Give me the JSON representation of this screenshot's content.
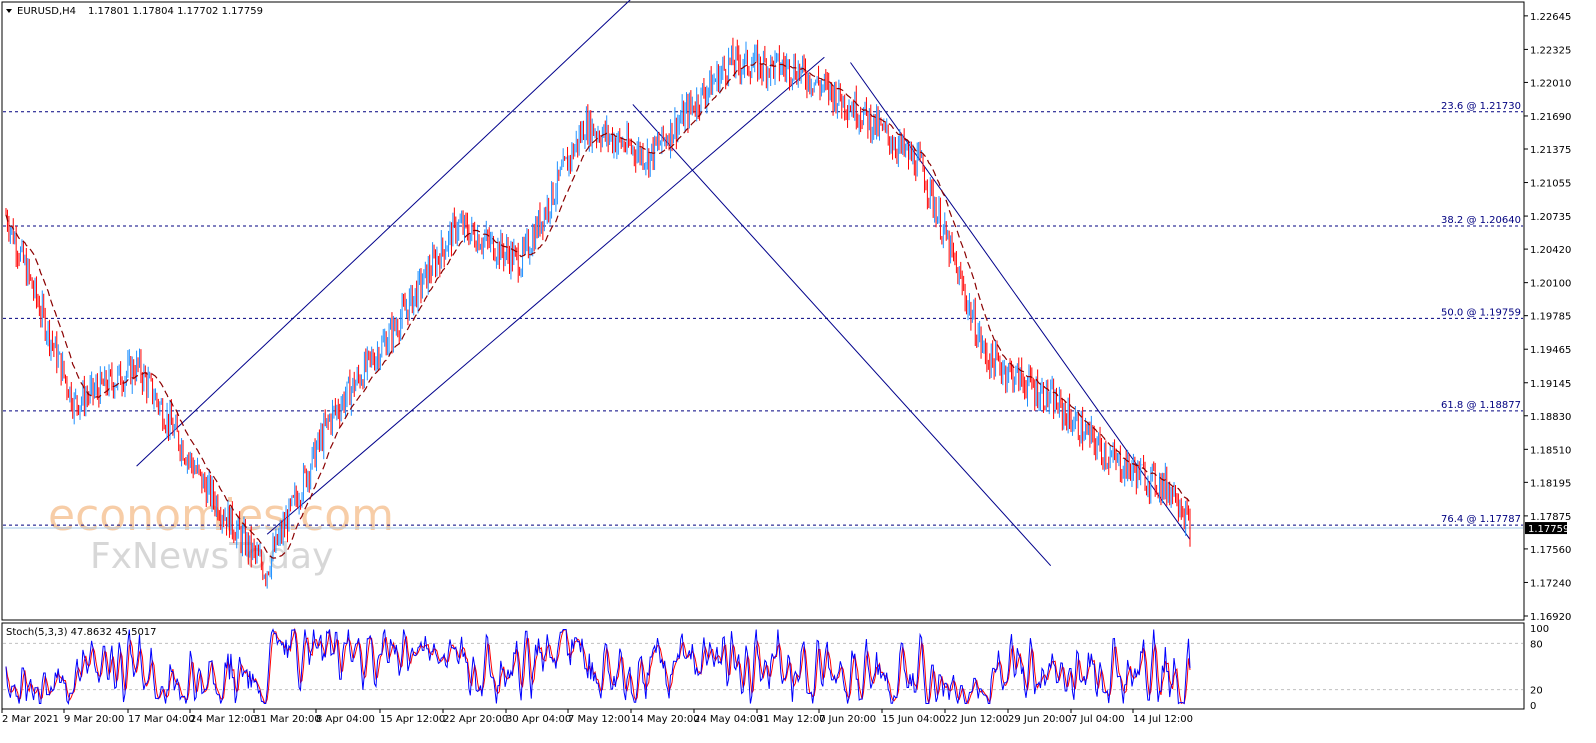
{
  "header": {
    "symbol": "EURUSD,H4",
    "quote": "1.17801 1.17804 1.17702 1.17759"
  },
  "price_axis": {
    "ticks": [
      "1.22645",
      "1.22325",
      "1.22010",
      "1.21690",
      "1.21375",
      "1.21055",
      "1.20735",
      "1.20420",
      "1.20100",
      "1.19785",
      "1.19465",
      "1.19145",
      "1.18830",
      "1.18510",
      "1.18195",
      "1.17875",
      "1.17560",
      "1.17240",
      "1.16920"
    ],
    "current_price": "1.17759"
  },
  "fib_levels": [
    {
      "label": "23.6 @ 1.21730",
      "price": 1.2173
    },
    {
      "label": "38.2 @ 1.20640",
      "price": 1.2064
    },
    {
      "label": "50.0 @ 1.19759",
      "price": 1.19759
    },
    {
      "label": "61.8 @ 1.18877",
      "price": 1.18877
    },
    {
      "label": "76.4 @ 1.17787",
      "price": 1.17787
    }
  ],
  "time_axis": [
    "2 Mar 2021",
    "9 Mar 20:00",
    "17 Mar 04:00",
    "24 Mar 12:00",
    "31 Mar 20:00",
    "8 Apr 04:00",
    "15 Apr 12:00",
    "22 Apr 20:00",
    "30 Apr 04:00",
    "7 May 12:00",
    "14 May 20:00",
    "24 May 04:00",
    "31 May 12:00",
    "7 Jun 20:00",
    "15 Jun 04:00",
    "22 Jun 12:00",
    "29 Jun 20:00",
    "7 Jul 04:00",
    "14 Jul 12:00"
  ],
  "stoch": {
    "label": "Stoch(5,3,3) 47.8632 45.5017",
    "axis_ticks": [
      "100",
      "80",
      "20",
      "0"
    ]
  },
  "watermark": {
    "line1": "economies.com",
    "line2": "FxNewsToday"
  },
  "colors": {
    "bear_candle": "#ff0000",
    "bull_candle": "#1e90ff",
    "moving_average": "#8b0000",
    "channel_lines": "#00008b",
    "fib_lines": "#000080",
    "stoch_main": "#0000ff",
    "stoch_signal": "#ff0000"
  },
  "chart_data": {
    "type": "candlestick",
    "symbol": "EURUSD",
    "timeframe": "H4",
    "ylim": [
      1.1692,
      1.2272
    ],
    "x_range": [
      "2 Mar 2021",
      "16 Jul 2021"
    ],
    "close_path": [
      {
        "x": "2 Mar 2021",
        "y": 1.2075
      },
      {
        "x": "9 Mar 20:00",
        "y": 1.1895
      },
      {
        "x": "17 Mar 04:00",
        "y": 1.193
      },
      {
        "x": "24 Mar 12:00",
        "y": 1.182
      },
      {
        "x": "31 Mar 20:00",
        "y": 1.1735
      },
      {
        "x": "8 Apr 04:00",
        "y": 1.188
      },
      {
        "x": "15 Apr 12:00",
        "y": 1.1965
      },
      {
        "x": "22 Apr 20:00",
        "y": 1.2065
      },
      {
        "x": "30 Apr 04:00",
        "y": 1.203
      },
      {
        "x": "7 May 12:00",
        "y": 1.216
      },
      {
        "x": "14 May 20:00",
        "y": 1.213
      },
      {
        "x": "24 May 04:00",
        "y": 1.222
      },
      {
        "x": "31 May 12:00",
        "y": 1.2215
      },
      {
        "x": "7 Jun 20:00",
        "y": 1.2175
      },
      {
        "x": "15 Jun 04:00",
        "y": 1.212
      },
      {
        "x": "22 Jun 12:00",
        "y": 1.194
      },
      {
        "x": "29 Jun 20:00",
        "y": 1.19
      },
      {
        "x": "7 Jul 04:00",
        "y": 1.184
      },
      {
        "x": "14 Jul 12:00",
        "y": 1.181
      },
      {
        "x": "16 Jul 2021",
        "y": 1.17759
      }
    ],
    "channels": [
      {
        "name": "ascending-lower",
        "from": {
          "x": "1 Apr 2021",
          "y": 1.177
        },
        "to": {
          "x": "4 Jun 2021",
          "y": 1.2225
        }
      },
      {
        "name": "ascending-upper",
        "from": {
          "x": "17 Mar 2021",
          "y": 1.1835
        },
        "to": {
          "x": "14 May 2021",
          "y": 1.229
        }
      },
      {
        "name": "descending-upper",
        "from": {
          "x": "7 Jun 2021",
          "y": 1.222
        },
        "to": {
          "x": "16 Jul 2021",
          "y": 1.1765
        }
      },
      {
        "name": "descending-lower",
        "from": {
          "x": "13 May 2021",
          "y": 1.218
        },
        "to": {
          "x": "30 Jun 2021",
          "y": 1.174
        }
      }
    ],
    "stochastic": {
      "params": "5,3,3",
      "main": 47.8632,
      "signal": 45.5017,
      "levels": [
        20,
        80
      ]
    }
  }
}
